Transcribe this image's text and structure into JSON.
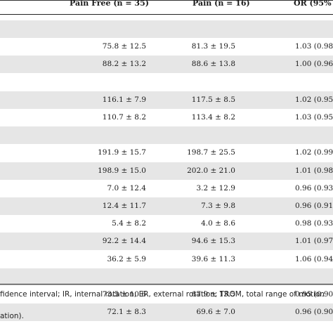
{
  "table": {
    "headers": [
      "Pain Free (n = 35)",
      "Pain (n = 16)",
      "OR (95%"
    ],
    "rows": [
      {
        "shade": true,
        "c1": "",
        "c2": "",
        "c3": ""
      },
      {
        "shade": false,
        "c1": "75.8 ± 12.5",
        "c2": "81.3 ± 19.5",
        "c3": "1.03 (0.98"
      },
      {
        "shade": true,
        "c1": "88.2 ± 13.2",
        "c2": "88.6 ± 13.8",
        "c3": "1.00 (0.96"
      },
      {
        "shade": false,
        "c1": "",
        "c2": "",
        "c3": ""
      },
      {
        "shade": true,
        "c1": "116.1 ± 7.9",
        "c2": "117.5 ± 8.5",
        "c3": "1.02 (0.95"
      },
      {
        "shade": false,
        "c1": "110.7 ± 8.2",
        "c2": "113.4 ± 8.2",
        "c3": "1.03 (0.95"
      },
      {
        "shade": true,
        "c1": "",
        "c2": "",
        "c3": ""
      },
      {
        "shade": false,
        "c1": "191.9 ± 15.7",
        "c2": "198.7 ± 25.5",
        "c3": "1.02 (0.99"
      },
      {
        "shade": true,
        "c1": "198.9 ± 15.0",
        "c2": "202.0 ± 21.0",
        "c3": "1.01 (0.98"
      },
      {
        "shade": false,
        "c1": "7.0 ± 12.4",
        "c2": "3.2 ± 12.9",
        "c3": "0.96 (0.93"
      },
      {
        "shade": true,
        "c1": "12.4 ± 11.7",
        "c2": "7.3 ± 9.8",
        "c3": "0.96 (0.91"
      },
      {
        "shade": false,
        "c1": "5.4 ± 8.2",
        "c2": "4.0 ± 8.6",
        "c3": "0.98 (0.93"
      },
      {
        "shade": true,
        "c1": "92.2 ± 14.4",
        "c2": "94.6 ± 15.3",
        "c3": "1.01 (0.97"
      },
      {
        "shade": false,
        "c1": "36.2 ± 5.9",
        "c2": "39.6 ± 11.3",
        "c3": "1.06 (0.94"
      },
      {
        "shade": true,
        "c1": "",
        "c2": "",
        "c3": ""
      },
      {
        "shade": false,
        "c1": "73.5 ± 10.6",
        "c2": "67.9 ± 13.5",
        "c3": "0.95 (0.90"
      },
      {
        "shade": true,
        "c1": "72.1 ± 8.3",
        "c2": "69.6 ± 7.0",
        "c3": "0.96 (0.90"
      }
    ]
  },
  "footnote": {
    "line1": "fidence interval; IR, internal rotation; ER, external rotation; TROM, total range of motion",
    "line2": "ation)."
  }
}
